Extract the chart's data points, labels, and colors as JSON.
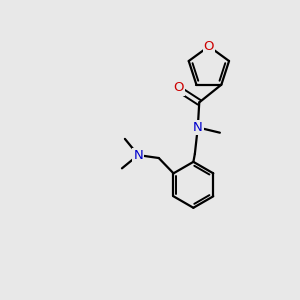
{
  "background_color": "#e8e8e8",
  "bond_color": "#000000",
  "N_color": "#0000cd",
  "O_color": "#cc0000",
  "figsize": [
    3.0,
    3.0
  ],
  "dpi": 100,
  "xlim": [
    0,
    10
  ],
  "ylim": [
    0,
    10
  ],
  "lw": 1.6,
  "lw2": 1.4,
  "fontsize": 9.5
}
